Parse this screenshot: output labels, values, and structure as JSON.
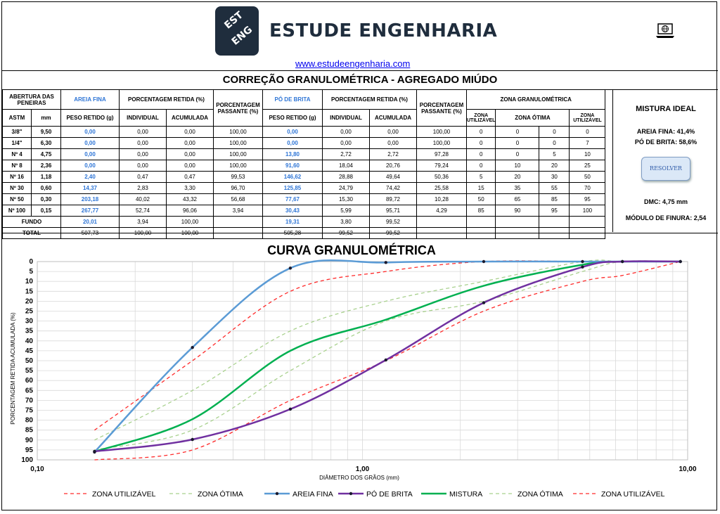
{
  "header": {
    "logo_lines": [
      "EST",
      "ENG"
    ],
    "brand": "ESTUDE ENGENHARIA",
    "url": "www.estudeengenharia.com",
    "laptop_icon": "laptop-globe-icon"
  },
  "title": "CORREÇÃO GRANULOMÉTRICA - AGREGADO MIÚDO",
  "table": {
    "h_abertura": "ABERTURA DAS PENEIRAS",
    "h_areia": "AREIA FINA",
    "h_pct_retida": "PORCENTAGEM RETIDA (%)",
    "h_pct_passante": "PORCENTAGEM PASSANTE (%)",
    "h_po": "PÓ DE BRITA",
    "h_zona": "ZONA GRANULOMÉTRICA",
    "h_astm": "ASTM",
    "h_mm": "mm",
    "h_peso": "PESO RETIDO (g)",
    "h_individual": "INDIVIDUAL",
    "h_acumulada": "ACUMULADA",
    "h_zona_util": "ZONA UTILIZÁVEL",
    "h_zona_otima": "ZONA ÓTIMA",
    "rows": [
      {
        "astm": "3/8\"",
        "mm": "9,50",
        "a_peso": "0,00",
        "a_ind": "0,00",
        "a_acum": "0,00",
        "a_pass": "100,00",
        "p_peso": "0,00",
        "p_ind": "0,00",
        "p_acum": "0,00",
        "p_pass": "100,00",
        "z1": "0",
        "z2": "0",
        "z3": "0",
        "z4": "0"
      },
      {
        "astm": "1/4\"",
        "mm": "6,30",
        "a_peso": "0,00",
        "a_ind": "0,00",
        "a_acum": "0,00",
        "a_pass": "100,00",
        "p_peso": "0,00",
        "p_ind": "0,00",
        "p_acum": "0,00",
        "p_pass": "100,00",
        "z1": "0",
        "z2": "0",
        "z3": "0",
        "z4": "7"
      },
      {
        "astm": "Nº 4",
        "mm": "4,75",
        "a_peso": "0,00",
        "a_ind": "0,00",
        "a_acum": "0,00",
        "a_pass": "100,00",
        "p_peso": "13,80",
        "p_ind": "2,72",
        "p_acum": "2,72",
        "p_pass": "97,28",
        "z1": "0",
        "z2": "0",
        "z3": "5",
        "z4": "10"
      },
      {
        "astm": "Nº 8",
        "mm": "2,36",
        "a_peso": "0,00",
        "a_ind": "0,00",
        "a_acum": "0,00",
        "a_pass": "100,00",
        "p_peso": "91,60",
        "p_ind": "18,04",
        "p_acum": "20,76",
        "p_pass": "79,24",
        "z1": "0",
        "z2": "10",
        "z3": "20",
        "z4": "25"
      },
      {
        "astm": "Nº 16",
        "mm": "1,18",
        "a_peso": "2,40",
        "a_ind": "0,47",
        "a_acum": "0,47",
        "a_pass": "99,53",
        "p_peso": "146,62",
        "p_ind": "28,88",
        "p_acum": "49,64",
        "p_pass": "50,36",
        "z1": "5",
        "z2": "20",
        "z3": "30",
        "z4": "50"
      },
      {
        "astm": "Nº 30",
        "mm": "0,60",
        "a_peso": "14,37",
        "a_ind": "2,83",
        "a_acum": "3,30",
        "a_pass": "96,70",
        "p_peso": "125,85",
        "p_ind": "24,79",
        "p_acum": "74,42",
        "p_pass": "25,58",
        "z1": "15",
        "z2": "35",
        "z3": "55",
        "z4": "70"
      },
      {
        "astm": "Nº 50",
        "mm": "0,30",
        "a_peso": "203,18",
        "a_ind": "40,02",
        "a_acum": "43,32",
        "a_pass": "56,68",
        "p_peso": "77,67",
        "p_ind": "15,30",
        "p_acum": "89,72",
        "p_pass": "10,28",
        "z1": "50",
        "z2": "65",
        "z3": "85",
        "z4": "95"
      },
      {
        "astm": "Nº 100",
        "mm": "0,15",
        "a_peso": "267,77",
        "a_ind": "52,74",
        "a_acum": "96,06",
        "a_pass": "3,94",
        "p_peso": "30,43",
        "p_ind": "5,99",
        "p_acum": "95,71",
        "p_pass": "4,29",
        "z1": "85",
        "z2": "90",
        "z3": "95",
        "z4": "100"
      }
    ],
    "fundo": {
      "label": "FUNDO",
      "a_peso": "20,01",
      "a_ind": "3,94",
      "a_acum": "100,00",
      "p_peso": "19,31",
      "p_ind": "3,80",
      "p_acum": "99,52"
    },
    "total": {
      "label": "TOTAL",
      "a_peso": "507,73",
      "a_ind": "100,00",
      "a_acum": "100,00",
      "p_peso": "505,28",
      "p_ind": "99,52",
      "p_acum": "99,52"
    }
  },
  "side": {
    "title": "MISTURA IDEAL",
    "areia": "AREIA FINA: 41,4%",
    "po": "PÓ DE BRITA: 58,6%",
    "button": "RESOLVER",
    "dmc": "DMC: 4,75 mm",
    "modulo": "MÓDULO DE FINURA: 2,54"
  },
  "chart_data": {
    "type": "line",
    "title": "CURVA GRANULOMÉTRICA",
    "xlabel": "DIÂMETRO DOS GRÃOS (mm)",
    "ylabel": "PORCENTAGEM RETIDA ACUMULADA (%)",
    "x_scale": "log",
    "xlim": [
      0.1,
      10
    ],
    "ylim": [
      0,
      100
    ],
    "y_inverted": true,
    "y_ticks": [
      0,
      5,
      10,
      15,
      20,
      25,
      30,
      35,
      40,
      45,
      50,
      55,
      60,
      65,
      70,
      75,
      80,
      85,
      90,
      95,
      100
    ],
    "x_ticks": [
      "0,10",
      "1,00",
      "10,00"
    ],
    "x_tick_values": [
      0.1,
      1,
      10
    ],
    "grid": true,
    "legend_position": "bottom",
    "x": [
      0.15,
      0.3,
      0.6,
      1.18,
      2.36,
      4.75,
      6.3,
      9.5
    ],
    "series": [
      {
        "name": "ZONA UTILIZÁVEL",
        "color": "#ff2a2a",
        "dash": "dashed",
        "values": [
          100,
          95,
          70,
          50,
          25,
          10,
          7,
          0
        ]
      },
      {
        "name": "ZONA ÓTIMA",
        "color": "#a9d18e",
        "dash": "dashed",
        "values": [
          95,
          85,
          55,
          30,
          20,
          5,
          0,
          0
        ]
      },
      {
        "name": "AREIA FINA",
        "color": "#5b9bd5",
        "dash": "solid",
        "values": [
          96.06,
          43.32,
          3.3,
          0.47,
          0,
          0,
          0,
          0
        ]
      },
      {
        "name": "PÓ DE BRITA",
        "color": "#7030a0",
        "dash": "solid",
        "values": [
          95.71,
          89.72,
          74.42,
          49.64,
          20.76,
          2.72,
          0,
          0
        ]
      },
      {
        "name": "MISTURA",
        "color": "#00b050",
        "dash": "solid",
        "values": [
          95.9,
          79.5,
          45.0,
          29.3,
          12.2,
          1.6,
          0,
          0
        ]
      },
      {
        "name": "ZONA ÓTIMA",
        "color": "#a9d18e",
        "dash": "dashed",
        "values": [
          90,
          65,
          35,
          20,
          10,
          0,
          0,
          0
        ]
      },
      {
        "name": "ZONA UTILIZÁVEL",
        "color": "#ff2a2a",
        "dash": "dashed",
        "values": [
          85,
          50,
          15,
          5,
          0,
          0,
          0,
          0
        ]
      }
    ]
  }
}
